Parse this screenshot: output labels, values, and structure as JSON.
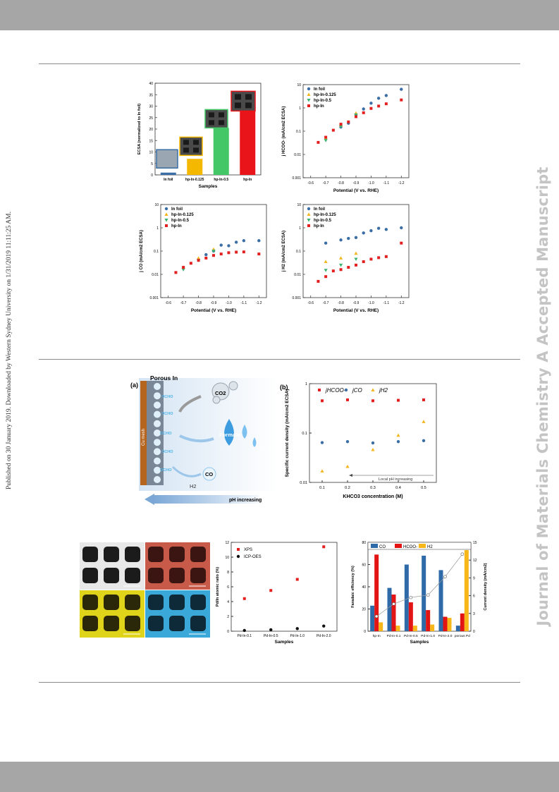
{
  "side_text": "Published on 30 January 2019. Downloaded by Western Sydney University on 1/31/2019 11:11:25 AM.",
  "watermark": "Journal of Materials Chemistry A Accepted Manuscript",
  "colors": {
    "blue": "#3a6ea5",
    "gold": "#f2b61f",
    "green": "#3cb371",
    "red": "#e32020",
    "black": "#111111"
  },
  "chart_data": [
    {
      "type": "bar",
      "ylabel": "ECSA (normalized to In foil)",
      "xlabel": "Samples",
      "ylim": [
        0,
        40
      ],
      "yticks": [
        "0",
        "5",
        "10",
        "15",
        "20",
        "25",
        "30",
        "35",
        "40"
      ],
      "categories": [
        "In foil",
        "hp-In-0.125",
        "hp-In-0.5",
        "hp-In"
      ],
      "values": [
        1,
        7,
        20.5,
        28
      ],
      "colors": [
        "#3a6ea5",
        "#f5b800",
        "#44c767",
        "#e8141a"
      ]
    },
    {
      "type": "scatter",
      "ylabel": "j HCOO- (mA/cm2 ECSA)",
      "xlabel": "Potential (V vs. RHE)",
      "xlim": [
        -0.55,
        -1.25
      ],
      "ylim": [
        0.001,
        10
      ],
      "xticks": [
        "-0.6",
        "-0.7",
        "-0.8",
        "-0.9",
        "-1.0",
        "-1.1",
        "-1.2"
      ],
      "yticks": [
        "0.001",
        "0.01",
        "0.1",
        "1",
        "10"
      ],
      "legend": [
        "In foil",
        "hp-In-0.125",
        "hp-In-0.5",
        "hp-In"
      ],
      "series": [
        {
          "name": "In foil",
          "x": [
            -0.8,
            -0.85,
            -0.9,
            -0.95,
            -1.0,
            -1.05,
            -1.1,
            -1.2
          ],
          "y": [
            0.15,
            0.22,
            0.5,
            0.9,
            1.6,
            2.6,
            3.4,
            6.3
          ]
        },
        {
          "name": "hp-In-0.125",
          "x": [
            -0.7,
            -0.8,
            -0.9
          ],
          "y": [
            0.05,
            0.18,
            0.6
          ]
        },
        {
          "name": "hp-In-0.5",
          "x": [
            -0.7,
            -0.8,
            -0.9
          ],
          "y": [
            0.04,
            0.16,
            0.5
          ]
        },
        {
          "name": "hp-In",
          "x": [
            -0.65,
            -0.7,
            -0.75,
            -0.8,
            -0.85,
            -0.9,
            -0.95,
            -1.0,
            -1.05,
            -1.1,
            -1.2
          ],
          "y": [
            0.033,
            0.055,
            0.11,
            0.2,
            0.25,
            0.42,
            0.62,
            0.95,
            1.2,
            1.5,
            2.2
          ]
        }
      ]
    },
    {
      "type": "scatter",
      "ylabel": "j CO (mA/cm2 ECSA)",
      "xlabel": "Potential (V vs. RHE)",
      "xlim": [
        -0.55,
        -1.25
      ],
      "ylim": [
        0.001,
        10
      ],
      "xticks": [
        "-0.6",
        "-0.7",
        "-0.8",
        "-0.9",
        "-1.0",
        "-1.1",
        "-1.2"
      ],
      "yticks": [
        "0.001",
        "0.01",
        "0.1",
        "1",
        "10"
      ],
      "legend": [
        "In foil",
        "hp-In-0.125",
        "hp-In-0.5",
        "hp-In"
      ],
      "series": [
        {
          "name": "In foil",
          "x": [
            -0.85,
            -0.9,
            -0.95,
            -1.0,
            -1.05,
            -1.1,
            -1.2
          ],
          "y": [
            0.07,
            0.1,
            0.18,
            0.17,
            0.24,
            0.28,
            0.28
          ]
        },
        {
          "name": "hp-In-0.125",
          "x": [
            -0.7,
            -0.8,
            -0.9
          ],
          "y": [
            0.02,
            0.05,
            0.12
          ]
        },
        {
          "name": "hp-In-0.5",
          "x": [
            -0.7,
            -0.8,
            -0.9
          ],
          "y": [
            0.016,
            0.04,
            0.1
          ]
        },
        {
          "name": "hp-In",
          "x": [
            -0.65,
            -0.7,
            -0.75,
            -0.8,
            -0.85,
            -0.9,
            -0.95,
            -1.0,
            -1.05,
            -1.1,
            -1.2
          ],
          "y": [
            0.012,
            0.02,
            0.03,
            0.04,
            0.05,
            0.065,
            0.075,
            0.085,
            0.09,
            0.092,
            0.075
          ]
        }
      ]
    },
    {
      "type": "scatter",
      "ylabel": "j H2 (mA/cm2 ECSA)",
      "xlabel": "Potential (V vs. RHE)",
      "xlim": [
        -0.55,
        -1.25
      ],
      "ylim": [
        0.001,
        10
      ],
      "xticks": [
        "-0.6",
        "-0.7",
        "-0.8",
        "-0.9",
        "-1.0",
        "-1.1",
        "-1.2"
      ],
      "yticks": [
        "0.001",
        "0.01",
        "0.1",
        "1",
        "10"
      ],
      "legend": [
        "In foil",
        "hp-In-0.125",
        "hp-In-0.5",
        "hp-In"
      ],
      "series": [
        {
          "name": "In foil",
          "x": [
            -0.7,
            -0.8,
            -0.85,
            -0.9,
            -0.95,
            -1.0,
            -1.05,
            -1.1,
            -1.2
          ],
          "y": [
            0.22,
            0.3,
            0.35,
            0.38,
            0.6,
            0.75,
            0.95,
            0.85,
            1.0
          ]
        },
        {
          "name": "hp-In-0.125",
          "x": [
            -0.7,
            -0.8,
            -0.9
          ],
          "y": [
            0.035,
            0.05,
            0.08
          ]
        },
        {
          "name": "hp-In-0.5",
          "x": [
            -0.7,
            -0.8,
            -0.9
          ],
          "y": [
            0.015,
            0.025,
            0.045
          ]
        },
        {
          "name": "hp-In",
          "x": [
            -0.65,
            -0.7,
            -0.75,
            -0.8,
            -0.85,
            -0.9,
            -0.95,
            -1.0,
            -1.05,
            -1.1,
            -1.2
          ],
          "y": [
            0.005,
            0.008,
            0.014,
            0.016,
            0.02,
            0.025,
            0.035,
            0.045,
            0.052,
            0.058,
            0.22
          ]
        }
      ]
    },
    {
      "type": "scatter",
      "panel": "(b)",
      "ylabel": "Specific current density (mA/cm2 ECSA)",
      "xlabel": "KHCO3 concentration (M)",
      "xlim": [
        0.05,
        0.55
      ],
      "ylim": [
        0.01,
        1
      ],
      "xticks": [
        "0.1",
        "0.2",
        "0.3",
        "0.4",
        "0.5"
      ],
      "yticks": [
        "0.01",
        "0.1",
        "1"
      ],
      "legend": [
        "jHCOO-",
        "jCO",
        "jH2"
      ],
      "annotation": "Local pH increasing",
      "series": [
        {
          "name": "jHCOO-",
          "x": [
            0.1,
            0.2,
            0.3,
            0.4,
            0.5
          ],
          "y": [
            0.45,
            0.47,
            0.45,
            0.46,
            0.47
          ]
        },
        {
          "name": "jCO",
          "x": [
            0.1,
            0.2,
            0.3,
            0.4,
            0.5
          ],
          "y": [
            0.064,
            0.067,
            0.063,
            0.067,
            0.07
          ]
        },
        {
          "name": "jH2",
          "x": [
            0.1,
            0.2,
            0.3,
            0.4,
            0.5
          ],
          "y": [
            0.017,
            0.021,
            0.046,
            0.09,
            0.17
          ]
        }
      ]
    },
    {
      "type": "scatter",
      "ylabel": "Pd/In atomic ratio (%)",
      "xlabel": "Samples",
      "ylim": [
        0,
        12
      ],
      "yticks": [
        "0",
        "2",
        "4",
        "6",
        "8",
        "10",
        "12"
      ],
      "categories": [
        "Pd-In-0.1",
        "Pd-In-0.5",
        "Pd-In-1.0",
        "Pd-In-2.0"
      ],
      "legend": [
        "XPS",
        "ICP-OES"
      ],
      "series": [
        {
          "name": "XPS",
          "values": [
            4.4,
            5.5,
            7.0,
            11.4
          ]
        },
        {
          "name": "ICP-OES",
          "values": [
            0.1,
            0.2,
            0.35,
            0.7
          ]
        }
      ]
    },
    {
      "type": "bar",
      "ylabel": "Faradaic efficiency (%)",
      "y2label": "Current density (mA/cm2)",
      "xlabel": "Samples",
      "ylim": [
        0,
        80
      ],
      "y2lim": [
        0,
        15
      ],
      "yticks": [
        "0",
        "20",
        "40",
        "60",
        "80"
      ],
      "y2ticks": [
        "0",
        "3",
        "6",
        "9",
        "12",
        "15"
      ],
      "categories": [
        "hp-In",
        "Pd-In-0.1",
        "Pd-In-0.5",
        "Pd-In-1.0",
        "Pd-In-2.0",
        "porous Pd"
      ],
      "legend": [
        "CO",
        "HCOO-",
        "H2"
      ],
      "series": [
        {
          "name": "CO",
          "values": [
            23,
            39,
            60,
            68,
            55,
            5
          ]
        },
        {
          "name": "HCOO-",
          "values": [
            69,
            33,
            26,
            19,
            13,
            16
          ]
        },
        {
          "name": "H2",
          "values": [
            8,
            5,
            5,
            6,
            12,
            73
          ]
        },
        {
          "name": "Current density",
          "values": [
            2.5,
            4.6,
            5.7,
            6.1,
            9.2,
            13
          ]
        }
      ]
    }
  ],
  "scheme": {
    "label_a": "(a)",
    "porous": "Porous In",
    "mesh": "Cu mesh",
    "co2": "CO2",
    "ocho": "OCHO",
    "formate": "Formate",
    "co": "CO",
    "h2": "H2",
    "ph": "pH increasing"
  },
  "eds": {
    "labels": [
      "",
      "",
      "",
      ""
    ]
  }
}
